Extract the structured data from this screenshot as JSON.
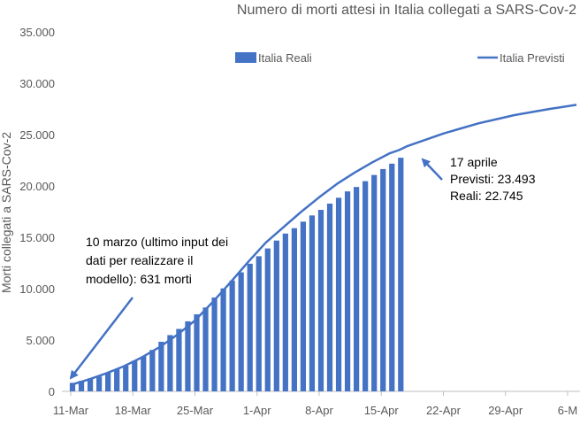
{
  "chart_data": {
    "type": "bar+line",
    "title": "Numero di morti attesi in Italia collegati a SARS-Cov-2",
    "ylabel": "Morti collegati a SARS-Cov-2",
    "xlabel": "",
    "ylim": [
      0,
      35000
    ],
    "yticks": [
      "0",
      "5.000",
      "10.000",
      "15.000",
      "20.000",
      "25.000",
      "30.000",
      "35.000"
    ],
    "yticks_values": [
      0,
      5000,
      10000,
      15000,
      20000,
      25000,
      30000,
      35000
    ],
    "x_start_day": 0,
    "x_end_day": 57,
    "xticks": [
      "11-Mar",
      "18-Mar",
      "25-Mar",
      "1-Apr",
      "8-Apr",
      "15-Apr",
      "22-Apr",
      "29-Apr",
      "6-M"
    ],
    "xticks_days": [
      0,
      7,
      14,
      21,
      28,
      35,
      42,
      49,
      56
    ],
    "grid": false,
    "legend": [
      "Italia Reali",
      "Italia Previsti"
    ],
    "legend_position": "top",
    "colors": {
      "bars": "#4472C4",
      "line": "#4472C4",
      "arrow": "#4472C4",
      "axis": "#bfbfbf"
    },
    "series": [
      {
        "name": "Italia Reali",
        "type": "bar",
        "x_days": [
          0,
          1,
          2,
          3,
          4,
          5,
          6,
          7,
          8,
          9,
          10,
          11,
          12,
          13,
          14,
          15,
          16,
          17,
          18,
          19,
          20,
          21,
          22,
          23,
          24,
          25,
          26,
          27,
          28,
          29,
          30,
          31,
          32,
          33,
          34,
          35,
          36,
          37
        ],
        "values": [
          827,
          1016,
          1266,
          1441,
          1809,
          2158,
          2503,
          2978,
          3405,
          4032,
          4825,
          5476,
          6077,
          6820,
          7503,
          8165,
          9134,
          10023,
          10779,
          11591,
          12428,
          13155,
          13915,
          14681,
          15362,
          15887,
          16523,
          17127,
          17669,
          18279,
          18849,
          19468,
          19899,
          20465,
          21067,
          21645,
          22170,
          22745
        ]
      },
      {
        "name": "Italia Previsti",
        "type": "line",
        "x_days": [
          0,
          2,
          4,
          6,
          8,
          10,
          12,
          14,
          16,
          18,
          20,
          22,
          24,
          26,
          28,
          30,
          32,
          34,
          36,
          37,
          38,
          40,
          42,
          44,
          46,
          48,
          50,
          52,
          54,
          57
        ],
        "values": [
          631,
          1150,
          1750,
          2450,
          3300,
          4300,
          5500,
          6900,
          8700,
          10600,
          12600,
          14500,
          16000,
          17500,
          18900,
          20200,
          21300,
          22300,
          23200,
          23493,
          23900,
          24500,
          25100,
          25600,
          26100,
          26500,
          26900,
          27200,
          27500,
          27900
        ]
      }
    ],
    "annotations": [
      {
        "lines": [
          "10 marzo (ultimo input dei",
          "dati per realizzare il",
          "modello): 631 morti"
        ]
      },
      {
        "lines": [
          "17 aprile",
          "Previsti: 23.493",
          "Reali: 22.745"
        ]
      }
    ]
  }
}
